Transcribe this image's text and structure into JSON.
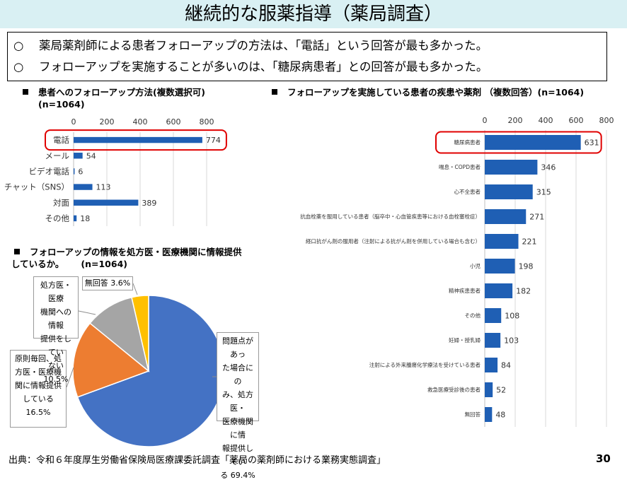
{
  "title": "継続的な服薬指導（薬局調査）",
  "summary": {
    "mark": "○",
    "lines": [
      "薬局薬剤師による患者フォローアップの方法は、「電話」という回答が最も多かった。",
      "フォローアップを実施することが多いのは、「糖尿病患者」との回答が最も多かった。"
    ]
  },
  "chart_data": [
    {
      "type": "bar",
      "orientation": "horizontal",
      "title_line1": "患者へのフォローアップ方法(複数選択可)",
      "title_line2": "(n=1064)",
      "categories": [
        "電話",
        "メール",
        "ビデオ電話",
        "チャット（SNS）",
        "対面",
        "その他"
      ],
      "values": [
        774,
        54,
        6,
        113,
        389,
        18
      ],
      "ticks": [
        0,
        200,
        400,
        600,
        800
      ],
      "xlim": [
        0,
        800
      ],
      "grid": true,
      "highlight": "電話",
      "color": "#1f5fb4"
    },
    {
      "type": "pie",
      "title_line1": "フォローアップの情報を処方医・医療機関に情報提供",
      "title_line2": "しているか。",
      "title_n": "(n=1064)",
      "slices": [
        {
          "value": 69.4,
          "label_lines": [
            "問題点があっ",
            "た場合にの",
            "み、処方医・",
            "医療機関に情",
            "報提供してい",
            "る 69.4%"
          ],
          "color": "#4472c4"
        },
        {
          "value": 16.5,
          "label_lines": [
            "原則毎回、処",
            "方医・医療機",
            "関に情報提供",
            "している",
            "16.5%"
          ],
          "color": "#ed7d31"
        },
        {
          "value": 10.5,
          "label_lines": [
            "処方医・医療",
            "機関への情報",
            "提供をしてい",
            "ない 10.5%"
          ],
          "color": "#a5a5a5"
        },
        {
          "value": 3.6,
          "label_lines": [
            "無回答 3.6%"
          ],
          "color": "#ffc000"
        }
      ]
    },
    {
      "type": "bar",
      "orientation": "horizontal",
      "title": "フォローアップを実施している患者の疾患や薬剤 （複数回答）(n=1064)",
      "categories": [
        "糖尿病患者",
        "喘息・COPD患者",
        "心不全患者",
        "抗血栓薬を服用している患者（脳卒中・心血管疾患等における血栓塞栓症）",
        "経口抗がん剤の服用者（注射による抗がん剤を併用している場合も含む）",
        "小児",
        "精神疾患患者",
        "その他",
        "妊婦・授乳婦",
        "注射による外来腫瘍化学療法を受けている患者",
        "救急医療受診後の患者",
        "無回答"
      ],
      "values": [
        631,
        346,
        315,
        271,
        221,
        198,
        182,
        108,
        103,
        84,
        52,
        48
      ],
      "ticks": [
        0,
        200,
        400,
        600,
        800
      ],
      "xlim": [
        0,
        800
      ],
      "grid": true,
      "highlight": "糖尿病患者",
      "color": "#1f5fb4"
    }
  ],
  "footer": {
    "source": "出典：令和６年度厚生労働省保険局医療課委託調査「薬局の薬剤師における業務実態調査」",
    "page": "30"
  }
}
